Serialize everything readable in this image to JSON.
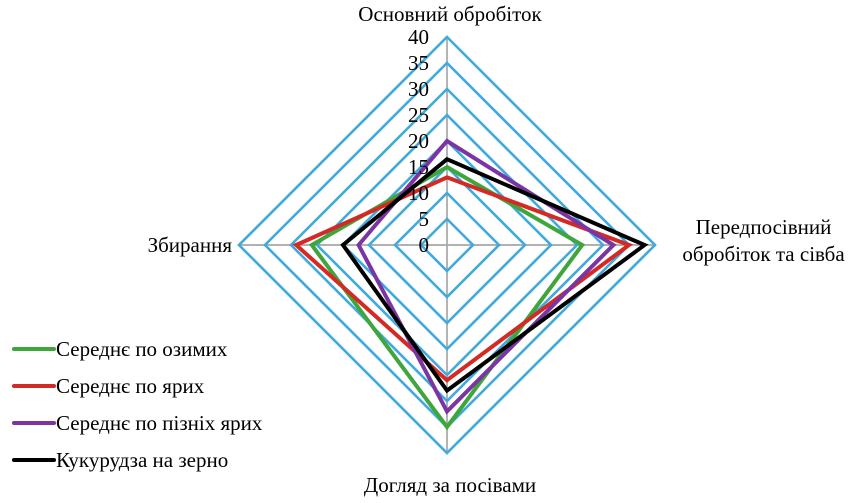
{
  "chart_data": {
    "type": "radar",
    "title": "",
    "categories": [
      "Основний обробіток",
      "Передпосівний обробіток та сівба",
      "Догляд за посівами",
      "Збирання"
    ],
    "axis_labels": {
      "top": {
        "label": "Основний обробіток",
        "lines": [
          "Основний обробіток"
        ]
      },
      "right": {
        "label": "Передпосівний обробіток та сівба",
        "lines": [
          "Передпосівний",
          "обробіток та сівба"
        ]
      },
      "bottom": {
        "label": "Догляд за посівами",
        "lines": [
          "Догляд за посівами"
        ]
      },
      "left": {
        "label": "Збирання",
        "lines": [
          "Збирання"
        ]
      }
    },
    "scale": {
      "min": 0,
      "max": 40,
      "step": 5,
      "tick_labels": [
        "40",
        "35",
        "30",
        "25",
        "20",
        "15",
        "10",
        "5",
        "0"
      ]
    },
    "value_axis_order": [
      "top: Основний обробіток",
      "right: Передпосівний обробіток та сівба",
      "bottom: Догляд за посівами",
      "left: Збирання"
    ],
    "grid_color": "#41AADC",
    "axis_line_color": "#A6A6A6",
    "legend_position": "bottom-left",
    "series": [
      {
        "name": "Середнє по озимих",
        "color": "#3FA63C",
        "values": [
          15,
          26,
          35,
          26
        ]
      },
      {
        "name": "Середнє по ярих",
        "color": "#D42A26",
        "values": [
          13,
          35,
          26,
          29
        ]
      },
      {
        "name": "Середнє по пізніх ярих",
        "color": "#7A35A2",
        "values": [
          20,
          32,
          32,
          17
        ]
      },
      {
        "name": "Кукурудза на зерно",
        "color": "#000000",
        "values": [
          16.5,
          38,
          28,
          20
        ]
      }
    ]
  }
}
